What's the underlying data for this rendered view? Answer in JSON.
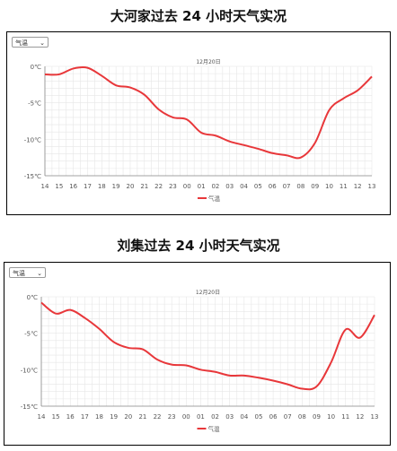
{
  "charts": [
    {
      "title": "大河家过去 24 小时天气实况",
      "select_value": "气温",
      "date_label": "12月20日",
      "legend_label": "气温"
    },
    {
      "title": "刘集过去 24 小时天气实况",
      "select_value": "气温",
      "date_label": "12月20日",
      "legend_label": "气温"
    }
  ],
  "colors": {
    "line": "#e8373a",
    "grid": "#e6e6e6",
    "axis": "#888888",
    "text": "#555555"
  },
  "icons": {
    "dropdown": "chevron-down-icon"
  },
  "chart_data": [
    {
      "type": "line",
      "categories": [
        "14",
        "15",
        "16",
        "17",
        "18",
        "19",
        "20",
        "21",
        "22",
        "23",
        "00",
        "01",
        "02",
        "03",
        "04",
        "05",
        "06",
        "07",
        "08",
        "09",
        "10",
        "11",
        "12",
        "13"
      ],
      "series": [
        {
          "name": "气温",
          "values": [
            -1.1,
            -1.1,
            -0.3,
            -0.2,
            -1.3,
            -2.6,
            -2.9,
            -3.9,
            -5.9,
            -7.0,
            -7.3,
            -9.1,
            -9.5,
            -10.3,
            -10.8,
            -11.3,
            -11.9,
            -12.2,
            -12.5,
            -10.5,
            -6.0,
            -4.4,
            -3.3,
            -1.4
          ]
        }
      ],
      "yticks": [
        0,
        -5,
        -10,
        -15
      ],
      "ytick_labels": [
        "0℃",
        "-5℃",
        "-10℃",
        "-15℃"
      ],
      "ylim": [
        -15,
        0
      ],
      "grid": true,
      "legend": "bottom-center"
    },
    {
      "type": "line",
      "categories": [
        "14",
        "15",
        "16",
        "17",
        "18",
        "19",
        "20",
        "21",
        "22",
        "23",
        "00",
        "01",
        "02",
        "03",
        "04",
        "05",
        "06",
        "07",
        "08",
        "09",
        "10",
        "11",
        "12",
        "13"
      ],
      "series": [
        {
          "name": "气温",
          "values": [
            -0.8,
            -2.3,
            -1.8,
            -2.9,
            -4.4,
            -6.2,
            -7.0,
            -7.2,
            -8.6,
            -9.3,
            -9.4,
            -10.0,
            -10.3,
            -10.8,
            -10.8,
            -11.1,
            -11.5,
            -12.0,
            -12.6,
            -12.3,
            -9.0,
            -4.5,
            -5.6,
            -2.5
          ]
        }
      ],
      "yticks": [
        0,
        -5,
        -10,
        -15
      ],
      "ytick_labels": [
        "0℃",
        "-5℃",
        "-10℃",
        "-15℃"
      ],
      "ylim": [
        -15,
        0
      ],
      "grid": true,
      "legend": "bottom-center"
    }
  ]
}
